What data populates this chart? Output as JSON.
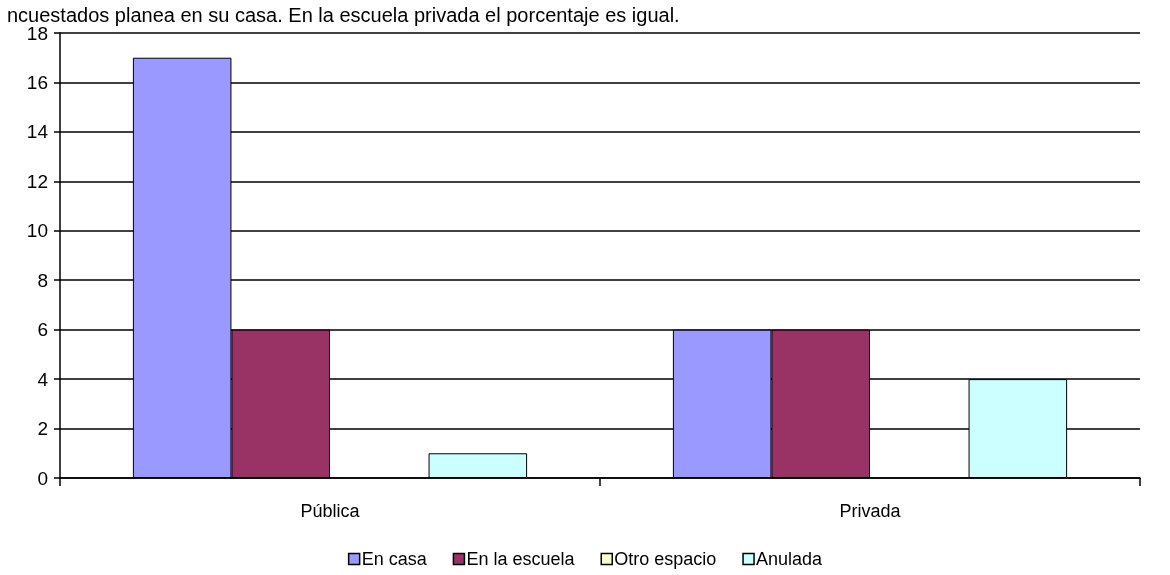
{
  "chart_data": {
    "type": "bar",
    "title": "ncuestados planea en su casa. En la escuela privada el porcentaje es igual.",
    "categories": [
      "Pública",
      "Privada"
    ],
    "series": [
      {
        "name": "En casa",
        "color": "#9999ff",
        "values": [
          17,
          6
        ]
      },
      {
        "name": "En la escuela",
        "color": "#993366",
        "values": [
          6,
          6
        ]
      },
      {
        "name": "Otro espacio",
        "color": "#ffffcc",
        "values": [
          0,
          0
        ]
      },
      {
        "name": "Anulada",
        "color": "#ccffff",
        "values": [
          1,
          4
        ]
      }
    ],
    "ylim": [
      0,
      18
    ],
    "yticks": [
      0,
      2,
      4,
      6,
      8,
      10,
      12,
      14,
      16,
      18
    ],
    "grid": "y",
    "legend": "bottom"
  }
}
